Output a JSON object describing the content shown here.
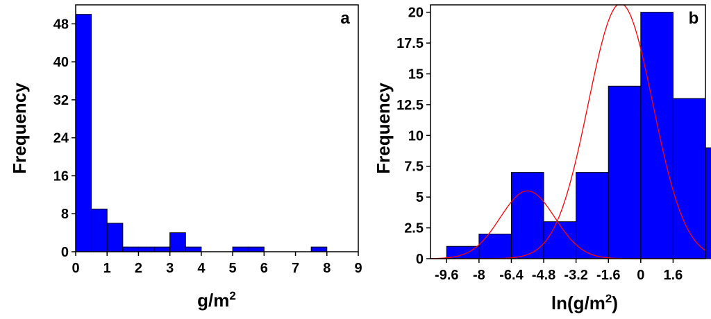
{
  "colors": {
    "bar": "#0000ff",
    "curve": "#ff0000",
    "frame": "#000000"
  },
  "chart_data": [
    {
      "type": "bar",
      "panel_label": "a",
      "xlabel": "g/m",
      "xlabel_sup": "2",
      "ylabel": "Frequency",
      "xlim": [
        0,
        9
      ],
      "ylim": [
        0,
        52
      ],
      "xticks": [
        0,
        1,
        2,
        3,
        4,
        5,
        6,
        7,
        8,
        9
      ],
      "xtick_labels": [
        "0",
        "1",
        "2",
        "3",
        "4",
        "5",
        "6",
        "7",
        "8",
        "9"
      ],
      "yticks": [
        0,
        8,
        16,
        24,
        32,
        40,
        48
      ],
      "ytick_labels": [
        "0",
        "8",
        "16",
        "24",
        "32",
        "40",
        "48"
      ],
      "bin_width": 0.5,
      "bins": [
        {
          "x0": 0.0,
          "value": 50
        },
        {
          "x0": 0.5,
          "value": 9
        },
        {
          "x0": 1.0,
          "value": 6
        },
        {
          "x0": 1.5,
          "value": 1
        },
        {
          "x0": 2.0,
          "value": 1
        },
        {
          "x0": 2.5,
          "value": 1
        },
        {
          "x0": 3.0,
          "value": 4
        },
        {
          "x0": 3.5,
          "value": 1
        },
        {
          "x0": 4.0,
          "value": 0
        },
        {
          "x0": 4.5,
          "value": 0
        },
        {
          "x0": 5.0,
          "value": 1
        },
        {
          "x0": 5.5,
          "value": 1
        },
        {
          "x0": 6.0,
          "value": 0
        },
        {
          "x0": 6.5,
          "value": 0
        },
        {
          "x0": 7.0,
          "value": 0
        },
        {
          "x0": 7.5,
          "value": 1
        }
      ],
      "grid": false,
      "legend": "none"
    },
    {
      "type": "bar",
      "panel_label": "b",
      "xlabel": "ln(g/m",
      "xlabel_sup": "2",
      "xlabel_suffix": ")",
      "ylabel": "Frequency",
      "xlim": [
        -10.4,
        3.2
      ],
      "ylim": [
        0,
        20.6
      ],
      "xticks": [
        -9.6,
        -8,
        -6.4,
        -4.8,
        -3.2,
        -1.6,
        0,
        1.6
      ],
      "xtick_labels": [
        "-9.6",
        "-8",
        "-6.4",
        "-4.8",
        "-3.2",
        "-1.6",
        "0",
        "1.6"
      ],
      "yticks": [
        0,
        2.5,
        5,
        7.5,
        10,
        12.5,
        15,
        17.5,
        20
      ],
      "ytick_labels": [
        "0",
        "2.5",
        "5",
        "7.5",
        "10",
        "12.5",
        "15",
        "17.5",
        "20"
      ],
      "bin_width": 1.6,
      "bins": [
        {
          "x0": -9.6,
          "value": 1
        },
        {
          "x0": -8.0,
          "value": 2
        },
        {
          "x0": -6.4,
          "value": 7
        },
        {
          "x0": -4.8,
          "value": 3
        },
        {
          "x0": -3.2,
          "value": 7
        },
        {
          "x0": -1.6,
          "value": 14
        },
        {
          "x0": 0.0,
          "value": 20
        },
        {
          "x0": 1.6,
          "value": 13
        },
        {
          "x0": 3.2,
          "value": 9
        }
      ],
      "fitted_curves": [
        {
          "type": "normal",
          "mean": -5.6,
          "sd": 1.35,
          "peak": 5.5
        },
        {
          "type": "normal",
          "mean": -1.0,
          "sd": 1.6,
          "peak": 20.7
        }
      ],
      "grid": false,
      "legend": "none"
    }
  ]
}
